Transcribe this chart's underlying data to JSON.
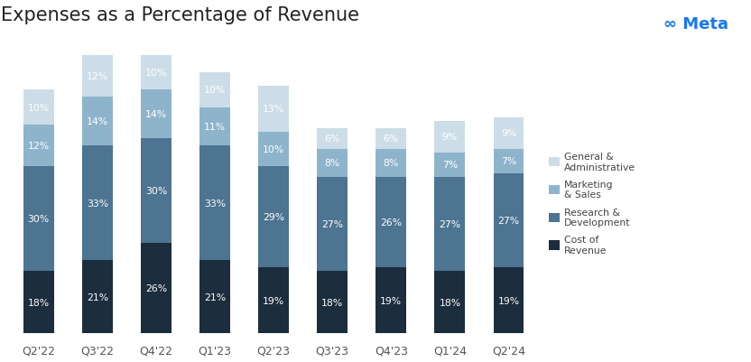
{
  "title": "Expenses as a Percentage of Revenue",
  "categories": [
    "Q2'22",
    "Q3'22",
    "Q4'22",
    "Q1'23",
    "Q2'23",
    "Q3'23",
    "Q4'23",
    "Q1'24",
    "Q2'24"
  ],
  "series": {
    "Cost of Revenue": [
      18,
      21,
      26,
      21,
      19,
      18,
      19,
      18,
      19
    ],
    "Research & Development": [
      30,
      33,
      30,
      33,
      29,
      27,
      26,
      27,
      27
    ],
    "Marketing & Sales": [
      12,
      14,
      14,
      11,
      10,
      8,
      8,
      7,
      7
    ],
    "General & Administrative": [
      10,
      12,
      10,
      10,
      13,
      6,
      6,
      9,
      9
    ]
  },
  "colors": {
    "Cost of Revenue": "#1c2d3d",
    "Research & Development": "#4d7491",
    "Marketing & Sales": "#8eb4cc",
    "General & Administrative": "#ccdde8"
  },
  "text_color": "#ffffff",
  "label_fontsize": 7.8,
  "title_fontsize": 15,
  "background_color": "#ffffff",
  "bar_width": 0.52,
  "ylim": [
    0,
    85
  ],
  "legend_labels": [
    "General &\nAdministrative",
    "Marketing\n& Sales",
    "Research &\nDevelopment",
    "Cost of\nRevenue"
  ],
  "meta_text": "∞ Meta",
  "meta_color": "#1877f2"
}
